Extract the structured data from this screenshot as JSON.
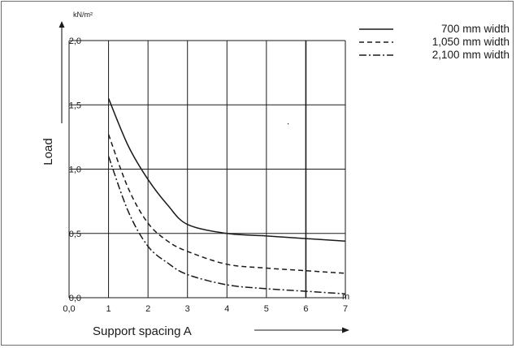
{
  "chart_data": {
    "type": "line",
    "xlabel": "Support spacing A",
    "ylabel": "Load",
    "x_unit": "m",
    "y_unit": "kN/m²",
    "xlim": [
      0,
      7
    ],
    "ylim": [
      0,
      2
    ],
    "x_ticks": [
      "0,0",
      "1",
      "2",
      "3",
      "4",
      "5",
      "6",
      "7"
    ],
    "y_ticks": [
      "0,0",
      "0,5",
      "1,0",
      "1,5",
      "2,0"
    ],
    "grid": true,
    "legend_position": "top-right",
    "series": [
      {
        "name": "700 mm width",
        "style": "solid",
        "x": [
          1,
          1.5,
          2,
          2.5,
          3,
          4,
          5,
          6,
          7
        ],
        "y": [
          1.55,
          1.18,
          0.92,
          0.72,
          0.57,
          0.5,
          0.48,
          0.46,
          0.44
        ]
      },
      {
        "name": "1,050 mm width",
        "style": "dashed",
        "x": [
          1,
          1.5,
          2,
          2.5,
          3,
          4,
          5,
          6,
          7
        ],
        "y": [
          1.27,
          0.85,
          0.58,
          0.44,
          0.36,
          0.26,
          0.23,
          0.21,
          0.19
        ]
      },
      {
        "name": "2,100 mm width",
        "style": "dash-dot",
        "x": [
          1,
          1.5,
          2,
          2.5,
          3,
          4,
          5,
          6,
          7
        ],
        "y": [
          1.1,
          0.67,
          0.4,
          0.27,
          0.18,
          0.1,
          0.07,
          0.05,
          0.03
        ]
      }
    ]
  },
  "colors": {
    "line": "#1a1a1a",
    "grid": "#1a1a1a",
    "frame": "#6e6e6e"
  }
}
